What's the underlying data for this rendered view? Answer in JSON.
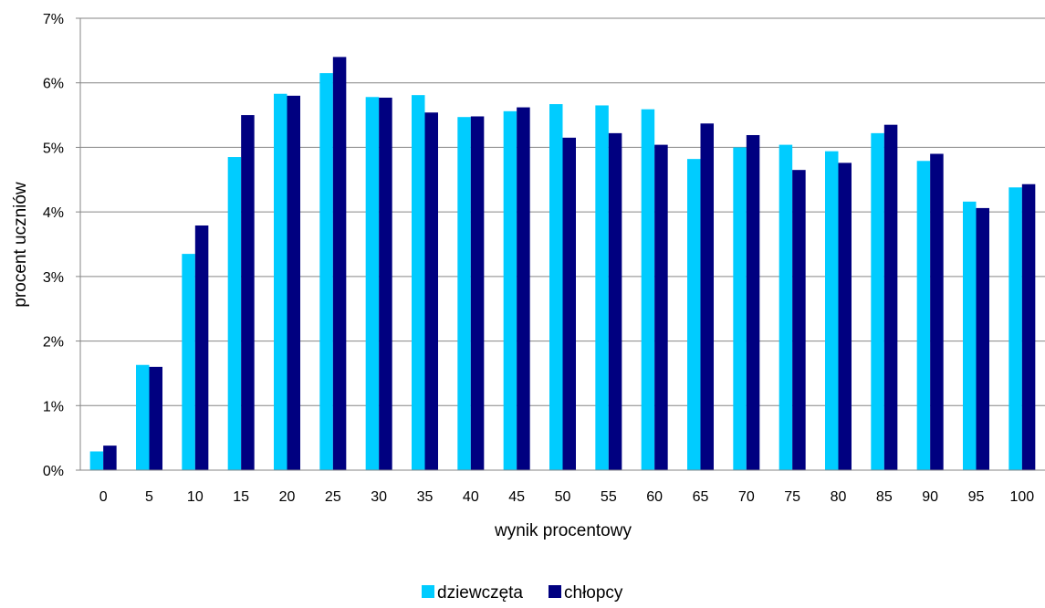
{
  "chart_data": {
    "type": "bar",
    "categories": [
      "0",
      "5",
      "10",
      "15",
      "20",
      "25",
      "30",
      "35",
      "40",
      "45",
      "50",
      "55",
      "60",
      "65",
      "70",
      "75",
      "80",
      "85",
      "90",
      "95",
      "100"
    ],
    "series": [
      {
        "name": "dziewczęta",
        "color": "#00CCFF",
        "values": [
          0.29,
          1.63,
          3.35,
          4.85,
          5.83,
          6.15,
          5.78,
          5.81,
          5.47,
          5.56,
          5.67,
          5.65,
          5.59,
          4.82,
          5.0,
          5.04,
          4.94,
          5.22,
          4.79,
          4.16,
          4.38
        ]
      },
      {
        "name": "chłopcy",
        "color": "#000080",
        "values": [
          0.38,
          1.6,
          3.79,
          5.5,
          5.8,
          6.4,
          5.77,
          5.54,
          5.48,
          5.62,
          5.15,
          5.22,
          5.04,
          5.37,
          5.19,
          4.65,
          4.76,
          5.35,
          4.9,
          4.06,
          4.43
        ]
      }
    ],
    "title": "",
    "xlabel": "wynik procentowy",
    "ylabel": "procent uczniów",
    "ylim": [
      0,
      7
    ],
    "yticks": [
      "0%",
      "1%",
      "2%",
      "3%",
      "4%",
      "5%",
      "6%",
      "7%"
    ],
    "grid": true,
    "legend": "bottom"
  }
}
